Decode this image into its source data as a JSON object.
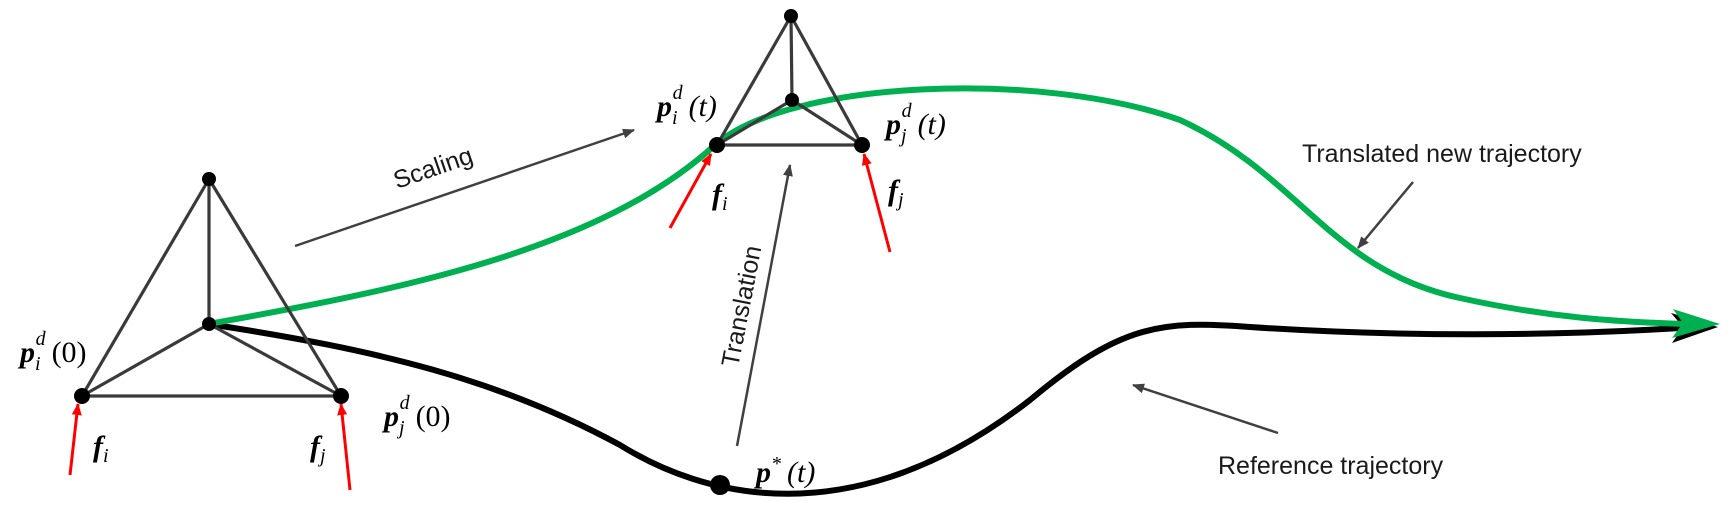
{
  "labels": {
    "scaling": "Scaling",
    "translation": "Translation",
    "translated_trajectory": "Translated new  trajectory",
    "reference_trajectory": "Reference trajectory"
  },
  "math": {
    "p_i_0": {
      "base": "p",
      "sub": "i",
      "sup": "d",
      "arg": "(0)"
    },
    "p_j_0": {
      "base": "p",
      "sub": "j",
      "sup": "d",
      "arg": "(0)"
    },
    "p_i_t": {
      "base": "p",
      "sub": "i",
      "sup": "d",
      "arg": "(t)"
    },
    "p_j_t": {
      "base": "p",
      "sub": "j",
      "sup": "d",
      "arg": "(t)"
    },
    "p_star": {
      "base": "p",
      "sup": "*",
      "arg": "(t)"
    },
    "f_i_left": {
      "base": "f",
      "sub": "i"
    },
    "f_j_left": {
      "base": "f",
      "sub": "j"
    },
    "f_i_right": {
      "base": "f",
      "sub": "i"
    },
    "f_j_right": {
      "base": "f",
      "sub": "j"
    }
  },
  "colors": {
    "translated_trajectory": "#00b050",
    "reference_trajectory": "#000000",
    "force_arrows": "#ff0000",
    "annotation_arrows": "#404040",
    "formation_edges": "#3a3a3a"
  }
}
